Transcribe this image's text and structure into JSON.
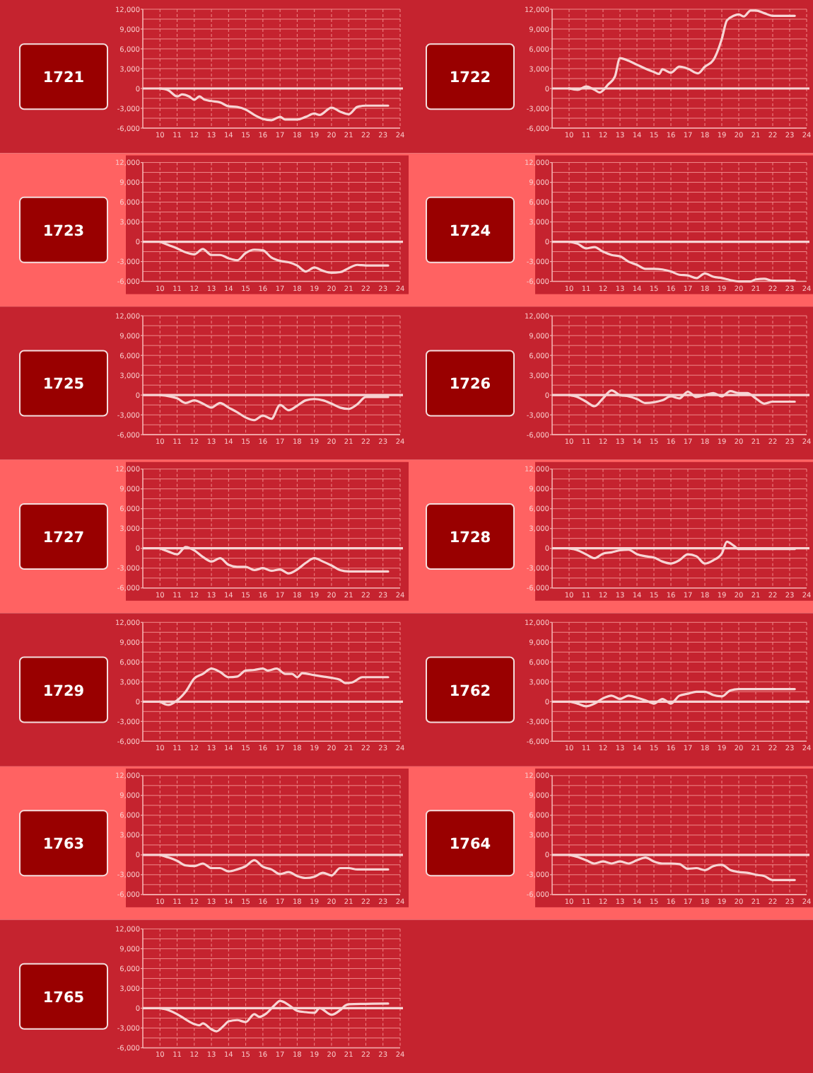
{
  "chart_data": [
    {
      "type": "line",
      "title": "1721",
      "color": "#f7d4d4",
      "x": [
        10,
        10.5,
        11,
        11.3,
        11.7,
        12,
        12.3,
        12.6,
        13,
        13.5,
        14,
        14.5,
        15,
        15.5,
        16,
        16.5,
        17,
        17.3,
        18,
        18.5,
        19,
        19.3,
        20,
        20.5,
        21,
        21.5,
        22,
        23.3
      ],
      "values": [
        0,
        -300,
        -1200,
        -900,
        -1200,
        -1700,
        -1200,
        -1700,
        -1900,
        -2100,
        -2700,
        -2800,
        -3200,
        -4000,
        -4600,
        -4800,
        -4300,
        -4700,
        -4700,
        -4300,
        -3800,
        -4000,
        -2900,
        -3500,
        -3900,
        -2800,
        -2600,
        -2600
      ],
      "xlim": [
        9,
        24
      ],
      "ylim": [
        -6000,
        12000
      ],
      "xticks": [
        10,
        11,
        12,
        13,
        14,
        15,
        16,
        17,
        18,
        19,
        20,
        21,
        22,
        23,
        24
      ],
      "yticks": [
        {
          "value": -6000,
          "label": "-6,000"
        },
        {
          "value": -3000,
          "label": "-3,000"
        },
        {
          "value": 0,
          "label": "0"
        },
        {
          "value": 3000,
          "label": "3,000"
        },
        {
          "value": 6000,
          "label": "6,000"
        },
        {
          "value": 9000,
          "label": "9,000"
        },
        {
          "value": 12000,
          "label": "12,000"
        }
      ],
      "grid": true,
      "ref_lines": [
        {
          "axis": "y",
          "value": 0
        }
      ]
    },
    {
      "type": "line",
      "title": "1722",
      "color": "#f7d4d4",
      "x": [
        10,
        10.5,
        11,
        11.5,
        11.8,
        12.3,
        12.7,
        13,
        13.5,
        14,
        14.5,
        15,
        15.3,
        15.5,
        16,
        16.5,
        17,
        17.6,
        18,
        18.5,
        19,
        19.3,
        19.7,
        20,
        20.3,
        20.7,
        21,
        21.5,
        22,
        23.3
      ],
      "values": [
        0,
        -200,
        300,
        -200,
        -600,
        600,
        1800,
        4600,
        4200,
        3600,
        3000,
        2500,
        2200,
        2900,
        2400,
        3300,
        3000,
        2300,
        3300,
        4300,
        7500,
        10300,
        11000,
        11200,
        10900,
        11800,
        11800,
        11400,
        11000,
        11000
      ],
      "xlim": [
        9,
        24
      ],
      "ylim": [
        -6000,
        12000
      ],
      "xticks": [
        10,
        11,
        12,
        13,
        14,
        15,
        16,
        17,
        18,
        19,
        20,
        21,
        22,
        23,
        24
      ],
      "yticks": [
        {
          "value": -6000,
          "label": "-6,000"
        },
        {
          "value": -3000,
          "label": "-3,000"
        },
        {
          "value": 0,
          "label": "0"
        },
        {
          "value": 3000,
          "label": "3,000"
        },
        {
          "value": 6000,
          "label": "6,000"
        },
        {
          "value": 9000,
          "label": "9,000"
        },
        {
          "value": 12000,
          "label": "12,000"
        }
      ],
      "grid": true,
      "ref_lines": [
        {
          "axis": "y",
          "value": 0
        }
      ]
    },
    {
      "type": "line",
      "title": "1723",
      "color": "#f7d4d4",
      "x": [
        10,
        10.5,
        11,
        11.5,
        12,
        12.5,
        13,
        13.5,
        14,
        14.5,
        15,
        15.5,
        16,
        16.5,
        17,
        17.5,
        18,
        18.5,
        19,
        19.5,
        20,
        20.5,
        21,
        21.5,
        22,
        23.3
      ],
      "values": [
        0,
        -500,
        -1000,
        -1600,
        -1900,
        -1100,
        -2000,
        -2000,
        -2500,
        -2800,
        -1700,
        -1200,
        -1300,
        -2400,
        -2900,
        -3100,
        -3600,
        -4500,
        -3900,
        -4400,
        -4700,
        -4600,
        -4000,
        -3500,
        -3600,
        -3600
      ],
      "xlim": [
        9,
        24
      ],
      "ylim": [
        -6000,
        12000
      ],
      "xticks": [
        10,
        11,
        12,
        13,
        14,
        15,
        16,
        17,
        18,
        19,
        20,
        21,
        22,
        23,
        24
      ],
      "yticks": [
        {
          "value": -6000,
          "label": "-6,000"
        },
        {
          "value": -3000,
          "label": "-3,000"
        },
        {
          "value": 0,
          "label": "0"
        },
        {
          "value": 3000,
          "label": "3,000"
        },
        {
          "value": 6000,
          "label": "6,000"
        },
        {
          "value": 9000,
          "label": "9,000"
        },
        {
          "value": 12000,
          "label": "12,000"
        }
      ],
      "grid": true,
      "ref_lines": [
        {
          "axis": "y",
          "value": 0
        }
      ]
    },
    {
      "type": "line",
      "title": "1724",
      "color": "#f7d4d4",
      "x": [
        10,
        10.5,
        11,
        11.5,
        12,
        12.5,
        13,
        13.5,
        14,
        14.5,
        15,
        15.5,
        16,
        16.5,
        17,
        17.5,
        18,
        18.5,
        19,
        19.5,
        20,
        20.7,
        21,
        21.5,
        22,
        23.3
      ],
      "values": [
        0,
        -300,
        -1000,
        -800,
        -1500,
        -2000,
        -2200,
        -3000,
        -3500,
        -4100,
        -4100,
        -4200,
        -4500,
        -5000,
        -5100,
        -5500,
        -4800,
        -5300,
        -5500,
        -5800,
        -6000,
        -6000,
        -5700,
        -5600,
        -5900,
        -5900
      ],
      "xlim": [
        9,
        24
      ],
      "ylim": [
        -6000,
        12000
      ],
      "xticks": [
        10,
        11,
        12,
        13,
        14,
        15,
        16,
        17,
        18,
        19,
        20,
        21,
        22,
        23,
        24
      ],
      "yticks": [
        {
          "value": -6000,
          "label": "-6,000"
        },
        {
          "value": -3000,
          "label": "-3,000"
        },
        {
          "value": 0,
          "label": "0"
        },
        {
          "value": 3000,
          "label": "3,000"
        },
        {
          "value": 6000,
          "label": "6,000"
        },
        {
          "value": 9000,
          "label": "9,000"
        },
        {
          "value": 12000,
          "label": "12,000"
        }
      ],
      "grid": true,
      "ref_lines": [
        {
          "axis": "y",
          "value": 0
        }
      ]
    },
    {
      "type": "line",
      "title": "1725",
      "color": "#f7d4d4",
      "x": [
        10,
        11,
        11.5,
        12,
        12.5,
        13,
        13.5,
        14,
        14.5,
        15,
        15.5,
        16,
        16.5,
        17,
        17.5,
        18,
        18.5,
        19,
        19.5,
        20,
        20.5,
        21,
        21.5,
        22,
        23.3
      ],
      "values": [
        0,
        -500,
        -1200,
        -800,
        -1300,
        -1900,
        -1200,
        -1900,
        -2600,
        -3400,
        -3800,
        -3100,
        -3600,
        -1500,
        -2300,
        -1600,
        -800,
        -600,
        -800,
        -1300,
        -1900,
        -2100,
        -1400,
        -300,
        -300
      ],
      "xlim": [
        9,
        24
      ],
      "ylim": [
        -6000,
        12000
      ],
      "xticks": [
        10,
        11,
        12,
        13,
        14,
        15,
        16,
        17,
        18,
        19,
        20,
        21,
        22,
        23,
        24
      ],
      "yticks": [
        {
          "value": -6000,
          "label": "-6,000"
        },
        {
          "value": -3000,
          "label": "-3,000"
        },
        {
          "value": 0,
          "label": "0"
        },
        {
          "value": 3000,
          "label": "3,000"
        },
        {
          "value": 6000,
          "label": "6,000"
        },
        {
          "value": 9000,
          "label": "9,000"
        },
        {
          "value": 12000,
          "label": "12,000"
        }
      ],
      "grid": true,
      "ref_lines": [
        {
          "axis": "y",
          "value": 0
        }
      ]
    },
    {
      "type": "line",
      "title": "1726",
      "color": "#f7d4d4",
      "x": [
        10,
        10.5,
        11,
        11.5,
        12,
        12.5,
        13,
        13.5,
        14,
        14.5,
        15,
        15.5,
        16,
        16.5,
        17,
        17.5,
        18,
        18.5,
        19,
        19.5,
        20,
        20.5,
        21,
        21.5,
        22,
        23.3
      ],
      "values": [
        0,
        -300,
        -1000,
        -1700,
        -500,
        700,
        0,
        -200,
        -600,
        -1200,
        -1100,
        -800,
        -200,
        -500,
        500,
        -300,
        0,
        300,
        -200,
        600,
        300,
        300,
        -500,
        -1300,
        -1000,
        -1000
      ],
      "xlim": [
        9,
        24
      ],
      "ylim": [
        -6000,
        12000
      ],
      "xticks": [
        10,
        11,
        12,
        13,
        14,
        15,
        16,
        17,
        18,
        19,
        20,
        21,
        22,
        23,
        24
      ],
      "yticks": [
        {
          "value": -6000,
          "label": "-6,000"
        },
        {
          "value": -3000,
          "label": "-3,000"
        },
        {
          "value": 0,
          "label": "0"
        },
        {
          "value": 3000,
          "label": "3,000"
        },
        {
          "value": 6000,
          "label": "6,000"
        },
        {
          "value": 9000,
          "label": "9,000"
        },
        {
          "value": 12000,
          "label": "12,000"
        }
      ],
      "grid": true,
      "ref_lines": [
        {
          "axis": "y",
          "value": 0
        }
      ]
    },
    {
      "type": "line",
      "title": "1727",
      "color": "#f7d4d4",
      "x": [
        10,
        10.5,
        11,
        11.5,
        12,
        12.5,
        13,
        13.5,
        14,
        14.5,
        15,
        15.5,
        16,
        16.5,
        17,
        17.5,
        18,
        18.5,
        19,
        19.5,
        20,
        20.5,
        21,
        23.3
      ],
      "values": [
        0,
        -500,
        -900,
        200,
        -300,
        -1300,
        -2000,
        -1500,
        -2500,
        -2800,
        -2800,
        -3300,
        -3000,
        -3400,
        -3200,
        -3800,
        -3200,
        -2200,
        -1500,
        -2000,
        -2600,
        -3300,
        -3500,
        -3500
      ],
      "xlim": [
        9,
        24
      ],
      "ylim": [
        -6000,
        12000
      ],
      "xticks": [
        10,
        11,
        12,
        13,
        14,
        15,
        16,
        17,
        18,
        19,
        20,
        21,
        22,
        23,
        24
      ],
      "yticks": [
        {
          "value": -6000,
          "label": "-6,000"
        },
        {
          "value": -3000,
          "label": "-3,000"
        },
        {
          "value": 0,
          "label": "0"
        },
        {
          "value": 3000,
          "label": "3,000"
        },
        {
          "value": 6000,
          "label": "6,000"
        },
        {
          "value": 9000,
          "label": "9,000"
        },
        {
          "value": 12000,
          "label": "12,000"
        }
      ],
      "grid": true,
      "ref_lines": [
        {
          "axis": "y",
          "value": 0
        }
      ]
    },
    {
      "type": "line",
      "title": "1728",
      "color": "#f7d4d4",
      "x": [
        10,
        10.5,
        11,
        11.5,
        12,
        12.5,
        13,
        13.5,
        14,
        14.5,
        15,
        15.5,
        16,
        16.5,
        17,
        17.5,
        18,
        18.5,
        19,
        19.3,
        19.7,
        20,
        21,
        23.3
      ],
      "values": [
        0,
        -300,
        -900,
        -1500,
        -800,
        -600,
        -300,
        -200,
        -900,
        -1200,
        -1400,
        -2000,
        -2300,
        -1800,
        -900,
        -1200,
        -2300,
        -1800,
        -800,
        1000,
        400,
        -100,
        -100,
        -100
      ],
      "xlim": [
        9,
        24
      ],
      "ylim": [
        -6000,
        12000
      ],
      "xticks": [
        10,
        11,
        12,
        13,
        14,
        15,
        16,
        17,
        18,
        19,
        20,
        21,
        22,
        23,
        24
      ],
      "yticks": [
        {
          "value": -6000,
          "label": "-6,000"
        },
        {
          "value": -3000,
          "label": "-3,000"
        },
        {
          "value": 0,
          "label": "0"
        },
        {
          "value": 3000,
          "label": "3,000"
        },
        {
          "value": 6000,
          "label": "6,000"
        },
        {
          "value": 9000,
          "label": "9,000"
        },
        {
          "value": 12000,
          "label": "12,000"
        }
      ],
      "grid": true,
      "ref_lines": [
        {
          "axis": "y",
          "value": 0
        }
      ]
    },
    {
      "type": "line",
      "title": "1729",
      "color": "#f7d4d4",
      "x": [
        10,
        10.5,
        11,
        11.5,
        12,
        12.5,
        13,
        13.5,
        14,
        14.5,
        15,
        15.5,
        16,
        16.3,
        16.8,
        17.3,
        17.7,
        18,
        18.3,
        19,
        19.5,
        20,
        20.5,
        20.8,
        21.2,
        21.8,
        23.3
      ],
      "values": [
        0,
        -500,
        200,
        1500,
        3500,
        4200,
        5000,
        4500,
        3700,
        3800,
        4700,
        4800,
        5000,
        4700,
        5000,
        4200,
        4200,
        3700,
        4300,
        4000,
        3800,
        3600,
        3300,
        2800,
        2900,
        3700,
        3700
      ],
      "xlim": [
        9,
        24
      ],
      "ylim": [
        -6000,
        12000
      ],
      "xticks": [
        10,
        11,
        12,
        13,
        14,
        15,
        16,
        17,
        18,
        19,
        20,
        21,
        22,
        23,
        24
      ],
      "yticks": [
        {
          "value": -6000,
          "label": "-6,000"
        },
        {
          "value": -3000,
          "label": "-3,000"
        },
        {
          "value": 0,
          "label": "0"
        },
        {
          "value": 3000,
          "label": "3,000"
        },
        {
          "value": 6000,
          "label": "6,000"
        },
        {
          "value": 9000,
          "label": "9,000"
        },
        {
          "value": 12000,
          "label": "12,000"
        }
      ],
      "grid": true,
      "ref_lines": [
        {
          "axis": "y",
          "value": 0
        }
      ]
    },
    {
      "type": "line",
      "title": "1762",
      "color": "#f7d4d4",
      "x": [
        10,
        10.5,
        11,
        11.5,
        12,
        12.5,
        13,
        13.5,
        14,
        14.5,
        15,
        15.5,
        16,
        16.5,
        17,
        17.5,
        18,
        18.5,
        19,
        19.5,
        20,
        20.5,
        23.3
      ],
      "values": [
        0,
        -300,
        -700,
        -300,
        500,
        900,
        400,
        900,
        600,
        200,
        -300,
        400,
        -300,
        900,
        1200,
        1500,
        1500,
        1000,
        800,
        1700,
        1900,
        1900,
        1900
      ],
      "xlim": [
        9,
        24
      ],
      "ylim": [
        -6000,
        12000
      ],
      "xticks": [
        10,
        11,
        12,
        13,
        14,
        15,
        16,
        17,
        18,
        19,
        20,
        21,
        22,
        23,
        24
      ],
      "yticks": [
        {
          "value": -6000,
          "label": "-6,000"
        },
        {
          "value": -3000,
          "label": "-3,000"
        },
        {
          "value": 0,
          "label": "0"
        },
        {
          "value": 3000,
          "label": "3,000"
        },
        {
          "value": 6000,
          "label": "6,000"
        },
        {
          "value": 9000,
          "label": "9,000"
        },
        {
          "value": 12000,
          "label": "12,000"
        }
      ],
      "grid": true,
      "ref_lines": [
        {
          "axis": "y",
          "value": 0
        }
      ]
    },
    {
      "type": "line",
      "title": "1763",
      "color": "#f7d4d4",
      "x": [
        10,
        10.5,
        11,
        11.5,
        12,
        12.5,
        13,
        13.5,
        14,
        14.5,
        15,
        15.5,
        16,
        16.5,
        17,
        17.5,
        18,
        18.5,
        19,
        19.5,
        20,
        20.5,
        21,
        21.5,
        23.3
      ],
      "values": [
        0,
        -400,
        -900,
        -1600,
        -1700,
        -1300,
        -2000,
        -2000,
        -2500,
        -2200,
        -1700,
        -800,
        -1800,
        -2200,
        -2900,
        -2600,
        -3200,
        -3500,
        -3300,
        -2700,
        -3100,
        -2000,
        -2000,
        -2200,
        -2200
      ],
      "xlim": [
        9,
        24
      ],
      "ylim": [
        -6000,
        12000
      ],
      "xticks": [
        10,
        11,
        12,
        13,
        14,
        15,
        16,
        17,
        18,
        19,
        20,
        21,
        22,
        23,
        24
      ],
      "yticks": [
        {
          "value": -6000,
          "label": "-6,000"
        },
        {
          "value": -3000,
          "label": "-3,000"
        },
        {
          "value": 0,
          "label": "0"
        },
        {
          "value": 3000,
          "label": "3,000"
        },
        {
          "value": 6000,
          "label": "6,000"
        },
        {
          "value": 9000,
          "label": "9,000"
        },
        {
          "value": 12000,
          "label": "12,000"
        }
      ],
      "grid": true,
      "ref_lines": [
        {
          "axis": "y",
          "value": 0
        }
      ]
    },
    {
      "type": "line",
      "title": "1764",
      "color": "#f7d4d4",
      "x": [
        10,
        10.5,
        11,
        11.5,
        12,
        12.5,
        13,
        13.5,
        14,
        14.5,
        15,
        15.5,
        16,
        16.5,
        17,
        17.5,
        18,
        18.5,
        19,
        19.5,
        20,
        20.5,
        21,
        21.5,
        22,
        23.3
      ],
      "values": [
        0,
        -300,
        -800,
        -1300,
        -1000,
        -1300,
        -1000,
        -1300,
        -800,
        -400,
        -1000,
        -1300,
        -1300,
        -1400,
        -2100,
        -2000,
        -2300,
        -1700,
        -1500,
        -2300,
        -2600,
        -2700,
        -3000,
        -3200,
        -3800,
        -3800
      ],
      "xlim": [
        9,
        24
      ],
      "ylim": [
        -6000,
        12000
      ],
      "xticks": [
        10,
        11,
        12,
        13,
        14,
        15,
        16,
        17,
        18,
        19,
        20,
        21,
        22,
        23,
        24
      ],
      "yticks": [
        {
          "value": -6000,
          "label": "-6,000"
        },
        {
          "value": -3000,
          "label": "-3,000"
        },
        {
          "value": 0,
          "label": "0"
        },
        {
          "value": 3000,
          "label": "3,000"
        },
        {
          "value": 6000,
          "label": "6,000"
        },
        {
          "value": 9000,
          "label": "9,000"
        },
        {
          "value": 12000,
          "label": "12,000"
        }
      ],
      "grid": true,
      "ref_lines": [
        {
          "axis": "y",
          "value": 0
        }
      ]
    },
    {
      "type": "line",
      "title": "1765",
      "color": "#f7d4d4",
      "x": [
        10,
        10.5,
        11,
        11.5,
        12,
        12.3,
        12.5,
        13,
        13.3,
        13.7,
        14,
        14.5,
        15,
        15.5,
        15.8,
        16.2,
        16.7,
        17,
        17.5,
        18,
        18.5,
        19,
        19.3,
        20,
        20.5,
        20.8,
        21,
        23.3
      ],
      "values": [
        0,
        -300,
        -900,
        -1700,
        -2400,
        -2600,
        -2300,
        -3200,
        -3500,
        -2700,
        -2000,
        -1800,
        -2100,
        -900,
        -1300,
        -800,
        500,
        1100,
        500,
        -400,
        -600,
        -700,
        0,
        -1000,
        -300,
        400,
        600,
        700
      ],
      "xlim": [
        9,
        24
      ],
      "ylim": [
        -6000,
        12000
      ],
      "xticks": [
        10,
        11,
        12,
        13,
        14,
        15,
        16,
        17,
        18,
        19,
        20,
        21,
        22,
        23,
        24
      ],
      "yticks": [
        {
          "value": -6000,
          "label": "-6,000"
        },
        {
          "value": -3000,
          "label": "-3,000"
        },
        {
          "value": 0,
          "label": "0"
        },
        {
          "value": 3000,
          "label": "3,000"
        },
        {
          "value": 6000,
          "label": "6,000"
        },
        {
          "value": 9000,
          "label": "9,000"
        },
        {
          "value": 12000,
          "label": "12,000"
        }
      ],
      "grid": true,
      "ref_lines": [
        {
          "axis": "y",
          "value": 0
        }
      ]
    }
  ]
}
